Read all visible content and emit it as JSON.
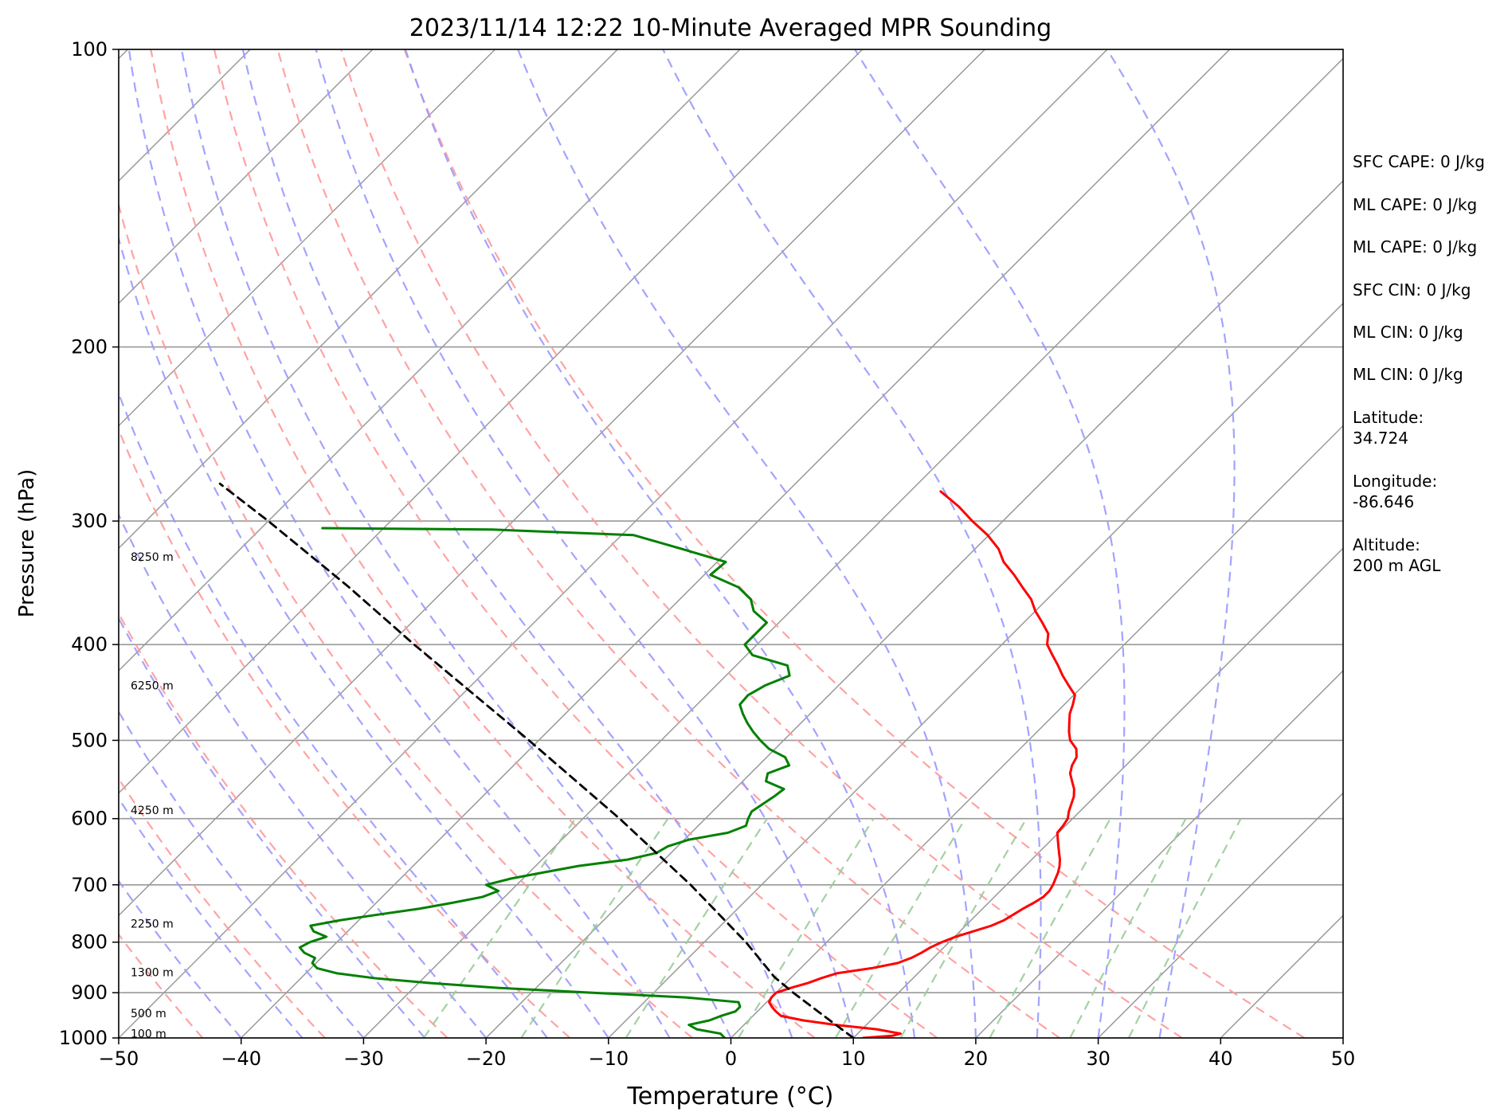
{
  "chart_data": {
    "type": "line",
    "chart_kind": "skew-T log-P",
    "title": "2023/11/14 12:22 10-Minute Averaged MPR Sounding",
    "xlabel": "Temperature (°C)",
    "ylabel": "Pressure (hPa)",
    "xlim": [
      -50,
      50
    ],
    "ylim": [
      1000,
      100
    ],
    "y_scale": "log",
    "x_ticks": [
      "−50",
      "−40",
      "−30",
      "−20",
      "−10",
      "0",
      "10",
      "20",
      "30",
      "40",
      "50"
    ],
    "x_tick_values": [
      -50,
      -40,
      -30,
      -20,
      -10,
      0,
      10,
      20,
      30,
      40,
      50
    ],
    "y_ticks": [
      "1000",
      "900",
      "800",
      "700",
      "600",
      "500",
      "400",
      "300",
      "200",
      "100"
    ],
    "y_tick_values": [
      1000,
      900,
      800,
      700,
      600,
      500,
      400,
      300,
      200,
      100
    ],
    "grid": true,
    "colors": {
      "temperature": "#ff0000",
      "dewpoint": "#008000",
      "parcel": "#000000",
      "isotherm": "#999999",
      "dry_adiabat": "#ff9999",
      "moist_adiabat": "#9999ff",
      "mixing_ratio": "#99cc99",
      "isobar": "#999999"
    },
    "background_lines": {
      "dry_adiabats_theta_K": [
        190,
        200,
        210,
        220,
        230,
        240,
        250,
        260,
        270,
        280,
        290,
        300,
        310,
        320
      ],
      "moist_adiabats_start_C": [
        -40,
        -35,
        -30,
        -25,
        -20,
        -15,
        -10,
        -5,
        0,
        5,
        10,
        15,
        20,
        25,
        30,
        35
      ],
      "mixing_ratio_g_per_kg": [
        0.5,
        1,
        2,
        4,
        7,
        10,
        16,
        24,
        32
      ]
    },
    "height_labels": [
      {
        "text": "100 m",
        "pressure": 990
      },
      {
        "text": "500 m",
        "pressure": 944
      },
      {
        "text": "1300 m",
        "pressure": 858
      },
      {
        "text": "2250 m",
        "pressure": 766
      },
      {
        "text": "4250 m",
        "pressure": 588
      },
      {
        "text": "6250 m",
        "pressure": 440
      },
      {
        "text": "8250 m",
        "pressure": 326
      }
    ],
    "series": [
      {
        "key": "temperature",
        "points": [
          {
            "p": 1000,
            "t": 10.8
          },
          {
            "p": 995,
            "t": 13.0
          },
          {
            "p": 990,
            "t": 13.5
          },
          {
            "p": 980,
            "t": 11.2
          },
          {
            "p": 970,
            "t": 7.5
          },
          {
            "p": 960,
            "t": 4.5
          },
          {
            "p": 950,
            "t": 2.3
          },
          {
            "p": 940,
            "t": 1.5
          },
          {
            "p": 930,
            "t": 0.8
          },
          {
            "p": 920,
            "t": 0.2
          },
          {
            "p": 910,
            "t": 0.0
          },
          {
            "p": 900,
            "t": 0.0
          },
          {
            "p": 890,
            "t": 0.8
          },
          {
            "p": 880,
            "t": 1.8
          },
          {
            "p": 870,
            "t": 2.5
          },
          {
            "p": 860,
            "t": 3.4
          },
          {
            "p": 850,
            "t": 5.8
          },
          {
            "p": 840,
            "t": 7.5
          },
          {
            "p": 830,
            "t": 8.2
          },
          {
            "p": 820,
            "t": 8.6
          },
          {
            "p": 810,
            "t": 8.9
          },
          {
            "p": 800,
            "t": 9.4
          },
          {
            "p": 790,
            "t": 10.1
          },
          {
            "p": 780,
            "t": 11.1
          },
          {
            "p": 770,
            "t": 12.1
          },
          {
            "p": 760,
            "t": 12.7
          },
          {
            "p": 750,
            "t": 13.0
          },
          {
            "p": 740,
            "t": 13.3
          },
          {
            "p": 730,
            "t": 13.7
          },
          {
            "p": 720,
            "t": 14.0
          },
          {
            "p": 710,
            "t": 14.0
          },
          {
            "p": 700,
            "t": 13.8
          },
          {
            "p": 690,
            "t": 13.5
          },
          {
            "p": 680,
            "t": 13.2
          },
          {
            "p": 670,
            "t": 12.8
          },
          {
            "p": 660,
            "t": 12.3
          },
          {
            "p": 650,
            "t": 11.7
          },
          {
            "p": 640,
            "t": 11.1
          },
          {
            "p": 630,
            "t": 10.5
          },
          {
            "p": 620,
            "t": 9.9
          },
          {
            "p": 610,
            "t": 9.8
          },
          {
            "p": 600,
            "t": 9.6
          },
          {
            "p": 590,
            "t": 9.1
          },
          {
            "p": 580,
            "t": 8.7
          },
          {
            "p": 570,
            "t": 8.3
          },
          {
            "p": 560,
            "t": 7.7
          },
          {
            "p": 550,
            "t": 6.9
          },
          {
            "p": 540,
            "t": 6.1
          },
          {
            "p": 530,
            "t": 5.6
          },
          {
            "p": 520,
            "t": 5.3
          },
          {
            "p": 510,
            "t": 4.6
          },
          {
            "p": 500,
            "t": 3.4
          },
          {
            "p": 490,
            "t": 2.6
          },
          {
            "p": 480,
            "t": 1.9
          },
          {
            "p": 470,
            "t": 1.2
          },
          {
            "p": 460,
            "t": 0.7
          },
          {
            "p": 450,
            "t": 0.1
          },
          {
            "p": 440,
            "t": -1.2
          },
          {
            "p": 430,
            "t": -2.5
          },
          {
            "p": 420,
            "t": -3.7
          },
          {
            "p": 410,
            "t": -5.0
          },
          {
            "p": 400,
            "t": -6.3
          },
          {
            "p": 390,
            "t": -7.1
          },
          {
            "p": 380,
            "t": -8.5
          },
          {
            "p": 370,
            "t": -10.0
          },
          {
            "p": 360,
            "t": -11.3
          },
          {
            "p": 350,
            "t": -13.0
          },
          {
            "p": 340,
            "t": -14.7
          },
          {
            "p": 330,
            "t": -16.6
          },
          {
            "p": 320,
            "t": -18.1
          },
          {
            "p": 310,
            "t": -20.1
          },
          {
            "p": 300,
            "t": -22.5
          },
          {
            "p": 290,
            "t": -24.8
          },
          {
            "p": 280,
            "t": -27.5
          }
        ]
      },
      {
        "key": "dewpoint",
        "points": [
          {
            "p": 1000,
            "t": -0.5
          },
          {
            "p": 990,
            "t": -1.2
          },
          {
            "p": 980,
            "t": -3.5
          },
          {
            "p": 970,
            "t": -4.5
          },
          {
            "p": 960,
            "t": -3.2
          },
          {
            "p": 950,
            "t": -2.6
          },
          {
            "p": 940,
            "t": -1.8
          },
          {
            "p": 930,
            "t": -1.8
          },
          {
            "p": 920,
            "t": -2.3
          },
          {
            "p": 910,
            "t": -7.0
          },
          {
            "p": 900,
            "t": -15.0
          },
          {
            "p": 890,
            "t": -23.0
          },
          {
            "p": 880,
            "t": -29.0
          },
          {
            "p": 870,
            "t": -34.0
          },
          {
            "p": 860,
            "t": -37.5
          },
          {
            "p": 850,
            "t": -39.5
          },
          {
            "p": 840,
            "t": -40.3
          },
          {
            "p": 830,
            "t": -40.5
          },
          {
            "p": 820,
            "t": -41.8
          },
          {
            "p": 810,
            "t": -42.6
          },
          {
            "p": 800,
            "t": -42.2
          },
          {
            "p": 790,
            "t": -41.3
          },
          {
            "p": 780,
            "t": -42.8
          },
          {
            "p": 770,
            "t": -43.5
          },
          {
            "p": 760,
            "t": -41.5
          },
          {
            "p": 750,
            "t": -38.8
          },
          {
            "p": 740,
            "t": -36.0
          },
          {
            "p": 730,
            "t": -33.8
          },
          {
            "p": 720,
            "t": -31.8
          },
          {
            "p": 710,
            "t": -31.0
          },
          {
            "p": 700,
            "t": -32.5
          },
          {
            "p": 690,
            "t": -31.0
          },
          {
            "p": 680,
            "t": -28.8
          },
          {
            "p": 670,
            "t": -26.5
          },
          {
            "p": 660,
            "t": -23.0
          },
          {
            "p": 650,
            "t": -21.2
          },
          {
            "p": 640,
            "t": -20.8
          },
          {
            "p": 630,
            "t": -19.6
          },
          {
            "p": 620,
            "t": -17.0
          },
          {
            "p": 610,
            "t": -16.1
          },
          {
            "p": 600,
            "t": -16.5
          },
          {
            "p": 590,
            "t": -16.8
          },
          {
            "p": 580,
            "t": -16.5
          },
          {
            "p": 570,
            "t": -16.2
          },
          {
            "p": 560,
            "t": -16.0
          },
          {
            "p": 550,
            "t": -18.1
          },
          {
            "p": 540,
            "t": -18.6
          },
          {
            "p": 530,
            "t": -17.5
          },
          {
            "p": 520,
            "t": -18.5
          },
          {
            "p": 510,
            "t": -20.5
          },
          {
            "p": 500,
            "t": -21.9
          },
          {
            "p": 490,
            "t": -23.2
          },
          {
            "p": 480,
            "t": -24.4
          },
          {
            "p": 470,
            "t": -25.5
          },
          {
            "p": 460,
            "t": -26.5
          },
          {
            "p": 450,
            "t": -26.6
          },
          {
            "p": 440,
            "t": -26.0
          },
          {
            "p": 430,
            "t": -24.8
          },
          {
            "p": 420,
            "t": -25.8
          },
          {
            "p": 410,
            "t": -29.5
          },
          {
            "p": 400,
            "t": -31.0
          },
          {
            "p": 390,
            "t": -31.0
          },
          {
            "p": 380,
            "t": -31.0
          },
          {
            "p": 370,
            "t": -33.0
          },
          {
            "p": 360,
            "t": -34.2
          },
          {
            "p": 350,
            "t": -36.2
          },
          {
            "p": 340,
            "t": -39.5
          },
          {
            "p": 330,
            "t": -39.3
          },
          {
            "p": 320,
            "t": -44.0
          },
          {
            "p": 310,
            "t": -49.0
          },
          {
            "p": 306,
            "t": -61.0
          },
          {
            "p": 305,
            "t": -75.0
          }
        ]
      },
      {
        "key": "parcel",
        "points": [
          {
            "p": 1000,
            "t": 10.0
          },
          {
            "p": 950,
            "t": 5.8
          },
          {
            "p": 900,
            "t": 1.4
          },
          {
            "p": 868,
            "t": -1.4
          },
          {
            "p": 800,
            "t": -6.6
          },
          {
            "p": 700,
            "t": -15.8
          },
          {
            "p": 600,
            "t": -27.0
          },
          {
            "p": 500,
            "t": -40.8
          },
          {
            "p": 400,
            "t": -58.0
          },
          {
            "p": 350,
            "t": -68.0
          },
          {
            "p": 300,
            "t": -80.0
          },
          {
            "p": 275,
            "t": -87.0
          }
        ]
      }
    ]
  },
  "side_panel": {
    "sfc_cape": "SFC CAPE: 0 J/kg",
    "ml_cape": "ML CAPE: 0 J/kg",
    "ml_cape_2": "ML CAPE: 0 J/kg",
    "sfc_cin": "SFC CIN: 0 J/kg",
    "ml_cin": "ML CIN: 0 J/kg",
    "ml_cin_2": "ML CIN: 0 J/kg",
    "latitude_label": "Latitude:",
    "latitude_value": "34.724",
    "longitude_label": "Longitude:",
    "longitude_value": "-86.646",
    "altitude_label": "Altitude:",
    "altitude_value": "200 m AGL"
  }
}
